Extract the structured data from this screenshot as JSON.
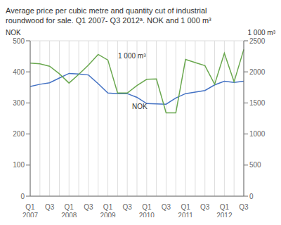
{
  "chart_data": {
    "type": "line",
    "title": "Average price per cubic metre and quantity cut of industrial\nroundwood for sale. Q1 2007- Q3 2012ᵃ. NOK and 1 000 m³",
    "ylabel": "NOK",
    "y2label": "1 000 m³",
    "categories": [
      "Q1\n2007",
      null,
      "Q3",
      null,
      "Q1\n2008",
      null,
      "Q3",
      null,
      "Q1\n2009",
      null,
      "Q3",
      null,
      "Q1\n2010",
      null,
      "Q3",
      null,
      "Q1\n2011",
      null,
      "Q3",
      null,
      "Q1\n2012",
      null,
      "Q3"
    ],
    "series": [
      {
        "color": "#4472c4",
        "values": [
          353,
          360,
          365,
          380,
          395,
          393,
          390,
          362,
          332,
          330,
          330,
          318,
          298,
          297,
          296,
          316,
          330,
          335,
          340,
          358,
          370,
          366,
          370
        ]
      },
      {
        "color": "#6aa84f",
        "axis": "y2",
        "values": [
          2140,
          2130,
          2090,
          1970,
          1820,
          1960,
          2110,
          2280,
          2190,
          1660,
          1660,
          1780,
          1880,
          1885,
          1340,
          1340,
          2200,
          2150,
          2100,
          1800,
          2300,
          1840,
          2360
        ]
      }
    ],
    "ylim": [
      0,
      500
    ],
    "yticks": [
      0,
      100,
      200,
      300,
      400,
      500
    ],
    "y2lim": [
      0,
      2500
    ],
    "y2ticks": [
      0,
      500,
      1000,
      1500,
      2000,
      2500
    ],
    "annotations": [
      "1 000 m³",
      "NOK"
    ],
    "grid": true
  }
}
